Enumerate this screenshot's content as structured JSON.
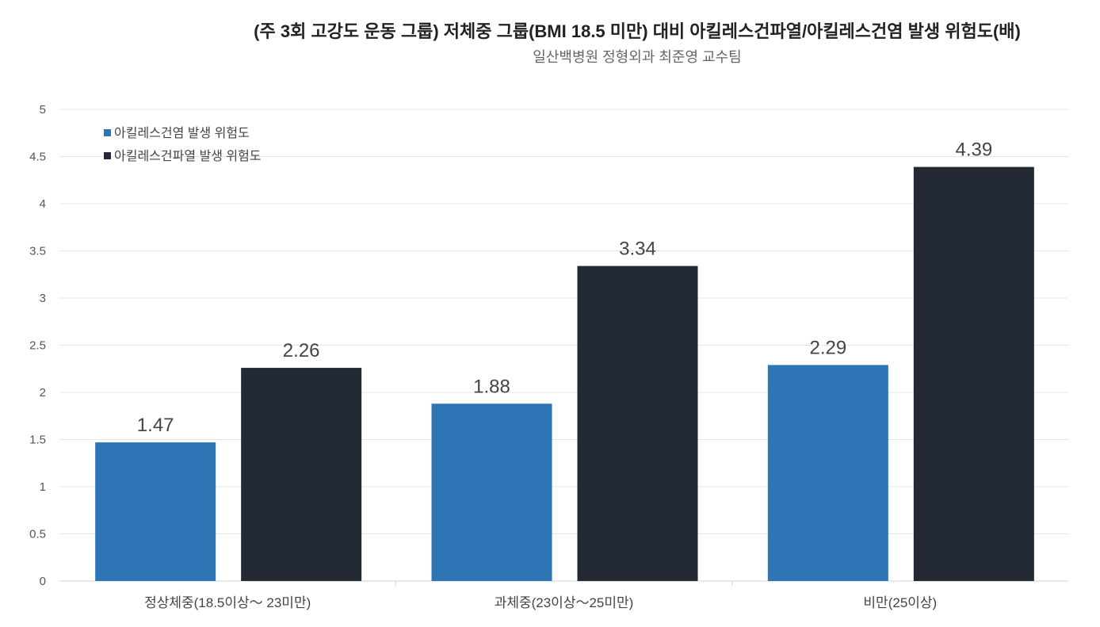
{
  "chart_data": {
    "type": "bar",
    "title": "(주 3회 고강도 운동 그룹) 저체중 그룹(BMI 18.5 미만) 대비 아킬레스건파열/아킬레스건염 발생 위험도(배)",
    "subtitle": "일산백병원 정형외과 최준영 교수팀",
    "categories": [
      "정상체중(18.5이상～ 23미만)",
      "과체중(23이상～25미만)",
      "비만(25이상)"
    ],
    "series": [
      {
        "name": "아킬레스건염 발생 위험도",
        "color": "#2e75b6",
        "values": [
          1.47,
          1.88,
          2.29
        ],
        "labels": [
          "1.47",
          "1.88",
          "2.29"
        ]
      },
      {
        "name": "아킬레스건파열 발생 위험도",
        "color": "#232a35",
        "values": [
          2.26,
          3.34,
          4.39
        ],
        "labels": [
          "2.26",
          "3.34",
          "4.39"
        ]
      }
    ],
    "yticks": [
      "0",
      "0.5",
      "1",
      "1.5",
      "2",
      "2.5",
      "3",
      "3.5",
      "4",
      "4.5",
      "5"
    ],
    "ylim": [
      0,
      5
    ],
    "xlabel": "",
    "ylabel": "",
    "grid": true,
    "legend_position": "top-left"
  }
}
